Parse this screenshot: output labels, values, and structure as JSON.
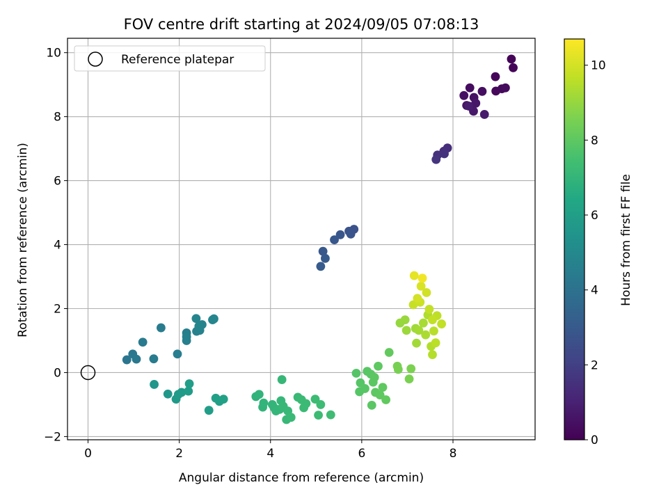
{
  "chart_data": {
    "type": "scatter",
    "title": "FOV centre drift starting at 2024/09/05 07:08:13",
    "xlabel": "Angular distance from reference (arcmin)",
    "ylabel": "Rotation from reference (arcmin)",
    "xlim": [
      -0.45,
      9.8
    ],
    "ylim": [
      -2.1,
      10.45
    ],
    "x_ticks": [
      0,
      2,
      4,
      6,
      8
    ],
    "y_ticks": [
      -2,
      0,
      2,
      4,
      6,
      8,
      10
    ],
    "grid": true,
    "legend": {
      "placement": "top-left",
      "entries": [
        "Reference platepar"
      ]
    },
    "colorbar": {
      "label": "Hours from first FF file",
      "range": [
        0,
        10.7
      ],
      "ticks": [
        0,
        2,
        4,
        6,
        8,
        10
      ],
      "colormap": "viridis"
    },
    "reference_point": {
      "x": 0,
      "y": 0
    },
    "points": [
      {
        "x": 9.28,
        "y": 9.8,
        "t": 0.05
      },
      {
        "x": 9.32,
        "y": 9.53,
        "t": 0.1
      },
      {
        "x": 8.93,
        "y": 9.25,
        "t": 0.15
      },
      {
        "x": 8.94,
        "y": 8.8,
        "t": 0.2
      },
      {
        "x": 9.07,
        "y": 8.87,
        "t": 0.25
      },
      {
        "x": 9.15,
        "y": 8.9,
        "t": 0.3
      },
      {
        "x": 8.37,
        "y": 8.9,
        "t": 0.35
      },
      {
        "x": 8.64,
        "y": 8.79,
        "t": 0.4
      },
      {
        "x": 8.24,
        "y": 8.66,
        "t": 0.45
      },
      {
        "x": 8.46,
        "y": 8.6,
        "t": 0.5
      },
      {
        "x": 8.3,
        "y": 8.35,
        "t": 0.55
      },
      {
        "x": 8.41,
        "y": 8.3,
        "t": 0.6
      },
      {
        "x": 8.5,
        "y": 8.42,
        "t": 0.65
      },
      {
        "x": 8.45,
        "y": 8.17,
        "t": 0.7
      },
      {
        "x": 8.69,
        "y": 8.07,
        "t": 0.75
      },
      {
        "x": 8.35,
        "y": 8.33,
        "t": 0.8
      },
      {
        "x": 7.88,
        "y": 7.02,
        "t": 1.4
      },
      {
        "x": 7.8,
        "y": 6.92,
        "t": 1.45
      },
      {
        "x": 7.66,
        "y": 6.8,
        "t": 1.5
      },
      {
        "x": 7.81,
        "y": 6.84,
        "t": 1.55
      },
      {
        "x": 7.63,
        "y": 6.66,
        "t": 1.6
      },
      {
        "x": 5.83,
        "y": 4.48,
        "t": 2.7
      },
      {
        "x": 5.72,
        "y": 4.42,
        "t": 2.75
      },
      {
        "x": 5.76,
        "y": 4.33,
        "t": 2.8
      },
      {
        "x": 5.53,
        "y": 4.31,
        "t": 2.85
      },
      {
        "x": 5.4,
        "y": 4.15,
        "t": 2.9
      },
      {
        "x": 5.15,
        "y": 3.79,
        "t": 2.95
      },
      {
        "x": 5.2,
        "y": 3.57,
        "t": 3.0
      },
      {
        "x": 5.1,
        "y": 3.32,
        "t": 3.05
      },
      {
        "x": 0.85,
        "y": 0.4,
        "t": 4.2
      },
      {
        "x": 0.98,
        "y": 0.58,
        "t": 4.25
      },
      {
        "x": 1.06,
        "y": 0.42,
        "t": 4.3
      },
      {
        "x": 1.2,
        "y": 0.95,
        "t": 4.35
      },
      {
        "x": 1.44,
        "y": 0.43,
        "t": 4.4
      },
      {
        "x": 1.6,
        "y": 1.4,
        "t": 4.45
      },
      {
        "x": 1.96,
        "y": 0.58,
        "t": 4.5
      },
      {
        "x": 2.16,
        "y": 1.24,
        "t": 4.55
      },
      {
        "x": 2.16,
        "y": 1.0,
        "t": 4.6
      },
      {
        "x": 2.16,
        "y": 1.12,
        "t": 4.62
      },
      {
        "x": 2.38,
        "y": 1.29,
        "t": 4.65
      },
      {
        "x": 2.45,
        "y": 1.32,
        "t": 4.7
      },
      {
        "x": 2.5,
        "y": 1.5,
        "t": 4.75
      },
      {
        "x": 2.37,
        "y": 1.69,
        "t": 4.8
      },
      {
        "x": 2.43,
        "y": 1.45,
        "t": 4.82
      },
      {
        "x": 2.73,
        "y": 1.65,
        "t": 4.85
      },
      {
        "x": 2.76,
        "y": 1.68,
        "t": 4.9
      },
      {
        "x": 1.45,
        "y": -0.37,
        "t": 5.6
      },
      {
        "x": 1.75,
        "y": -0.67,
        "t": 5.65
      },
      {
        "x": 1.93,
        "y": -0.83,
        "t": 5.7
      },
      {
        "x": 1.98,
        "y": -0.68,
        "t": 5.75
      },
      {
        "x": 2.05,
        "y": -0.62,
        "t": 5.8
      },
      {
        "x": 2.2,
        "y": -0.58,
        "t": 5.85
      },
      {
        "x": 2.22,
        "y": -0.35,
        "t": 5.9
      },
      {
        "x": 2.65,
        "y": -1.18,
        "t": 5.95
      },
      {
        "x": 2.8,
        "y": -0.8,
        "t": 6.0
      },
      {
        "x": 2.88,
        "y": -0.9,
        "t": 6.05
      },
      {
        "x": 2.97,
        "y": -0.83,
        "t": 6.1
      },
      {
        "x": 3.68,
        "y": -0.75,
        "t": 6.9
      },
      {
        "x": 3.75,
        "y": -0.68,
        "t": 6.92
      },
      {
        "x": 3.83,
        "y": -1.08,
        "t": 6.94
      },
      {
        "x": 3.85,
        "y": -0.95,
        "t": 6.96
      },
      {
        "x": 4.04,
        "y": -1.0,
        "t": 6.98
      },
      {
        "x": 4.08,
        "y": -1.1,
        "t": 7.0
      },
      {
        "x": 4.12,
        "y": -1.2,
        "t": 7.02
      },
      {
        "x": 4.2,
        "y": -1.15,
        "t": 7.04
      },
      {
        "x": 4.23,
        "y": -0.88,
        "t": 7.06
      },
      {
        "x": 4.25,
        "y": -0.22,
        "t": 7.08
      },
      {
        "x": 4.28,
        "y": -1.05,
        "t": 7.1
      },
      {
        "x": 4.35,
        "y": -1.47,
        "t": 7.12
      },
      {
        "x": 4.38,
        "y": -1.2,
        "t": 7.14
      },
      {
        "x": 4.45,
        "y": -1.4,
        "t": 7.16
      },
      {
        "x": 4.6,
        "y": -0.77,
        "t": 7.18
      },
      {
        "x": 4.68,
        "y": -0.85,
        "t": 7.2
      },
      {
        "x": 4.73,
        "y": -1.1,
        "t": 7.22
      },
      {
        "x": 4.78,
        "y": -0.97,
        "t": 7.24
      },
      {
        "x": 4.98,
        "y": -0.83,
        "t": 7.26
      },
      {
        "x": 5.05,
        "y": -1.33,
        "t": 7.28
      },
      {
        "x": 5.1,
        "y": -1.0,
        "t": 7.3
      },
      {
        "x": 5.32,
        "y": -1.32,
        "t": 7.32
      },
      {
        "x": 5.88,
        "y": -0.02,
        "t": 7.8
      },
      {
        "x": 5.95,
        "y": -0.6,
        "t": 7.82
      },
      {
        "x": 5.97,
        "y": -0.32,
        "t": 7.84
      },
      {
        "x": 6.07,
        "y": -0.5,
        "t": 7.86
      },
      {
        "x": 6.12,
        "y": 0.04,
        "t": 7.88
      },
      {
        "x": 6.2,
        "y": -0.05,
        "t": 7.9
      },
      {
        "x": 6.22,
        "y": -1.02,
        "t": 7.92
      },
      {
        "x": 6.25,
        "y": -0.3,
        "t": 7.94
      },
      {
        "x": 6.28,
        "y": -0.15,
        "t": 7.96
      },
      {
        "x": 6.3,
        "y": -0.62,
        "t": 7.98
      },
      {
        "x": 6.36,
        "y": 0.2,
        "t": 8.0
      },
      {
        "x": 6.4,
        "y": -0.7,
        "t": 8.02
      },
      {
        "x": 6.46,
        "y": -0.46,
        "t": 8.04
      },
      {
        "x": 6.53,
        "y": -0.85,
        "t": 8.06
      },
      {
        "x": 6.6,
        "y": 0.63,
        "t": 8.1
      },
      {
        "x": 6.78,
        "y": 0.2,
        "t": 8.5
      },
      {
        "x": 6.8,
        "y": 0.1,
        "t": 8.52
      },
      {
        "x": 7.04,
        "y": -0.2,
        "t": 8.55
      },
      {
        "x": 7.08,
        "y": 0.12,
        "t": 8.58
      },
      {
        "x": 6.84,
        "y": 1.55,
        "t": 9.0
      },
      {
        "x": 6.95,
        "y": 1.65,
        "t": 9.05
      },
      {
        "x": 6.98,
        "y": 1.32,
        "t": 9.1
      },
      {
        "x": 7.18,
        "y": 1.38,
        "t": 9.15
      },
      {
        "x": 7.2,
        "y": 0.92,
        "t": 9.2
      },
      {
        "x": 7.25,
        "y": 1.32,
        "t": 9.25
      },
      {
        "x": 7.35,
        "y": 1.55,
        "t": 9.3
      },
      {
        "x": 7.4,
        "y": 1.18,
        "t": 9.35
      },
      {
        "x": 7.45,
        "y": 1.8,
        "t": 9.4
      },
      {
        "x": 7.52,
        "y": 0.82,
        "t": 9.45
      },
      {
        "x": 7.55,
        "y": 0.56,
        "t": 9.5
      },
      {
        "x": 7.58,
        "y": 1.3,
        "t": 9.55
      },
      {
        "x": 7.62,
        "y": 0.93,
        "t": 9.6
      },
      {
        "x": 7.65,
        "y": 1.78,
        "t": 9.65
      },
      {
        "x": 7.75,
        "y": 1.52,
        "t": 9.7
      },
      {
        "x": 7.48,
        "y": 1.98,
        "t": 9.75
      },
      {
        "x": 7.13,
        "y": 2.12,
        "t": 9.8
      },
      {
        "x": 7.28,
        "y": 2.2,
        "t": 9.85
      },
      {
        "x": 7.42,
        "y": 2.5,
        "t": 9.95
      },
      {
        "x": 7.3,
        "y": 2.7,
        "t": 10.1
      },
      {
        "x": 7.15,
        "y": 3.03,
        "t": 10.3
      },
      {
        "x": 7.33,
        "y": 2.95,
        "t": 10.5
      },
      {
        "x": 7.22,
        "y": 2.32,
        "t": 10.0
      },
      {
        "x": 7.55,
        "y": 1.65,
        "t": 9.7
      }
    ]
  }
}
